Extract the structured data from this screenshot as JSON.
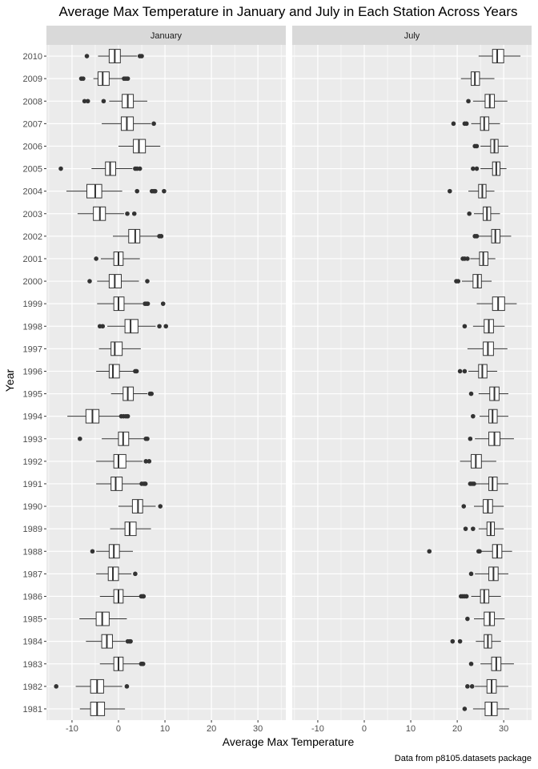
{
  "chart_data": {
    "type": "boxplot",
    "title": "Average Max Temperature in January and July in Each Station Across Years",
    "xlabel": "Average Max Temperature",
    "ylabel": "Year",
    "caption": "Data from p8105.datasets package",
    "xlim": [
      -15.5,
      36
    ],
    "x_ticks": [
      -10,
      0,
      10,
      20,
      30
    ],
    "y_categories": [
      "1981",
      "1982",
      "1983",
      "1984",
      "1985",
      "1986",
      "1987",
      "1988",
      "1989",
      "1990",
      "1991",
      "1992",
      "1993",
      "1994",
      "1995",
      "1996",
      "1997",
      "1998",
      "1999",
      "2000",
      "2001",
      "2002",
      "2003",
      "2004",
      "2005",
      "2006",
      "2007",
      "2008",
      "2009",
      "2010"
    ],
    "panels": [
      {
        "name": "January",
        "boxes": [
          {
            "year": "1981",
            "lw": -8.3,
            "q1": -6.0,
            "med": -4.6,
            "q3": -3.0,
            "uw": 1.4,
            "out": []
          },
          {
            "year": "1982",
            "lw": -9.2,
            "q1": -6.0,
            "med": -4.6,
            "q3": -3.2,
            "uw": 0.8,
            "out": [
              -13.4,
              1.8
            ]
          },
          {
            "year": "1983",
            "lw": -4.0,
            "q1": -1.0,
            "med": 0.0,
            "q3": 1.0,
            "uw": 4.6,
            "out": [
              4.9,
              5.1,
              5.3
            ]
          },
          {
            "year": "1984",
            "lw": -7.0,
            "q1": -3.6,
            "med": -2.5,
            "q3": -1.3,
            "uw": 1.5,
            "out": [
              2.0,
              2.4,
              2.6
            ]
          },
          {
            "year": "1985",
            "lw": -8.4,
            "q1": -4.8,
            "med": -3.5,
            "q3": -2.0,
            "uw": 1.8,
            "out": []
          },
          {
            "year": "1986",
            "lw": -4.0,
            "q1": -1.0,
            "med": 0.0,
            "q3": 1.0,
            "uw": 4.6,
            "out": [
              4.9,
              5.2,
              5.4
            ]
          },
          {
            "year": "1987",
            "lw": -4.8,
            "q1": -2.2,
            "med": -1.2,
            "q3": 0.0,
            "uw": 2.8,
            "out": [
              3.6
            ]
          },
          {
            "year": "1988",
            "lw": -4.8,
            "q1": -2.0,
            "med": -1.0,
            "q3": 0.2,
            "uw": 3.1,
            "out": [
              -5.6
            ]
          },
          {
            "year": "1989",
            "lw": -1.8,
            "q1": 1.4,
            "med": 2.4,
            "q3": 3.8,
            "uw": 7.0,
            "out": []
          },
          {
            "year": "1990",
            "lw": 0.0,
            "q1": 3.0,
            "med": 4.2,
            "q3": 5.2,
            "uw": 8.0,
            "out": [
              9.0
            ]
          },
          {
            "year": "1991",
            "lw": -4.8,
            "q1": -1.6,
            "med": -0.6,
            "q3": 0.8,
            "uw": 4.6,
            "out": [
              5.0,
              5.5,
              5.8
            ]
          },
          {
            "year": "1992",
            "lw": -4.8,
            "q1": -1.0,
            "med": 0.0,
            "q3": 1.6,
            "uw": 5.2,
            "out": [
              5.9,
              6.6
            ]
          },
          {
            "year": "1993",
            "lw": -3.6,
            "q1": 0.0,
            "med": 1.0,
            "q3": 2.2,
            "uw": 5.6,
            "out": [
              -8.3,
              5.9,
              6.2
            ]
          },
          {
            "year": "1994",
            "lw": -11.0,
            "q1": -7.0,
            "med": -5.6,
            "q3": -4.2,
            "uw": 0.2,
            "out": [
              0.6,
              1.1,
              1.6,
              2.0
            ]
          },
          {
            "year": "1995",
            "lw": -1.6,
            "q1": 1.0,
            "med": 2.0,
            "q3": 3.2,
            "uw": 6.2,
            "out": [
              6.8,
              7.1
            ]
          },
          {
            "year": "1996",
            "lw": -4.8,
            "q1": -2.0,
            "med": -1.2,
            "q3": 0.2,
            "uw": 3.2,
            "out": [
              3.6,
              3.9
            ]
          },
          {
            "year": "1997",
            "lw": -4.2,
            "q1": -1.6,
            "med": -0.8,
            "q3": 0.8,
            "uw": 4.8,
            "out": []
          },
          {
            "year": "1998",
            "lw": -2.4,
            "q1": 1.4,
            "med": 2.6,
            "q3": 4.2,
            "uw": 8.0,
            "out": [
              -4.0,
              -3.4,
              8.8,
              10.2
            ]
          },
          {
            "year": "1999",
            "lw": -4.6,
            "q1": -1.0,
            "med": 0.0,
            "q3": 1.2,
            "uw": 5.2,
            "out": [
              5.7,
              6.0,
              6.3,
              9.6
            ]
          },
          {
            "year": "2000",
            "lw": -4.6,
            "q1": -2.0,
            "med": -0.8,
            "q3": 0.6,
            "uw": 4.4,
            "out": [
              -6.2,
              6.2
            ]
          },
          {
            "year": "2001",
            "lw": -3.8,
            "q1": -1.0,
            "med": 0.0,
            "q3": 1.0,
            "uw": 4.6,
            "out": [
              -4.8
            ]
          },
          {
            "year": "2002",
            "lw": -1.2,
            "q1": 2.2,
            "med": 3.6,
            "q3": 4.6,
            "uw": 8.4,
            "out": [
              8.8,
              9.2
            ]
          },
          {
            "year": "2003",
            "lw": -8.8,
            "q1": -5.4,
            "med": -4.0,
            "q3": -2.8,
            "uw": 1.2,
            "out": [
              1.9,
              3.4
            ]
          },
          {
            "year": "2004",
            "lw": -11.2,
            "q1": -6.8,
            "med": -5.0,
            "q3": -3.6,
            "uw": 0.8,
            "out": [
              4.0,
              7.2,
              7.6,
              7.9,
              9.8
            ]
          },
          {
            "year": "2005",
            "lw": -5.8,
            "q1": -2.8,
            "med": -1.8,
            "q3": -0.6,
            "uw": 3.0,
            "out": [
              -12.4,
              3.6,
              4.0,
              4.6
            ]
          },
          {
            "year": "2006",
            "lw": 0.0,
            "q1": 3.2,
            "med": 4.4,
            "q3": 5.8,
            "uw": 9.0,
            "out": []
          },
          {
            "year": "2007",
            "lw": -3.6,
            "q1": 0.6,
            "med": 1.8,
            "q3": 3.2,
            "uw": 7.0,
            "out": [
              7.6
            ]
          },
          {
            "year": "2008",
            "lw": -2.0,
            "q1": 0.8,
            "med": 2.0,
            "q3": 3.2,
            "uw": 6.2,
            "out": [
              -7.3,
              -6.6,
              -3.2
            ]
          },
          {
            "year": "2009",
            "lw": -5.4,
            "q1": -4.4,
            "med": -3.4,
            "q3": -2.0,
            "uw": 0.8,
            "out": [
              -8.0,
              -7.6,
              1.2,
              1.6,
              2.0
            ]
          },
          {
            "year": "2010",
            "lw": -4.4,
            "q1": -2.0,
            "med": -0.8,
            "q3": 0.4,
            "uw": 4.0,
            "out": [
              -6.8,
              4.6,
              5.0
            ]
          }
        ]
      },
      {
        "name": "July",
        "boxes": [
          {
            "year": "1981",
            "lw": 23.4,
            "q1": 26.0,
            "med": 27.4,
            "q3": 28.6,
            "uw": 31.2,
            "out": [
              21.6
            ]
          },
          {
            "year": "1982",
            "lw": 23.8,
            "q1": 26.4,
            "med": 27.4,
            "q3": 28.4,
            "uw": 31.0,
            "out": [
              22.2,
              23.2
            ]
          },
          {
            "year": "1983",
            "lw": 25.0,
            "q1": 27.4,
            "med": 28.4,
            "q3": 29.4,
            "uw": 32.2,
            "out": [
              23.0
            ]
          },
          {
            "year": "1984",
            "lw": 24.0,
            "q1": 25.8,
            "med": 26.6,
            "q3": 27.4,
            "uw": 29.4,
            "out": [
              19.0,
              20.6
            ]
          },
          {
            "year": "1985",
            "lw": 23.6,
            "q1": 25.8,
            "med": 27.0,
            "q3": 28.0,
            "uw": 30.2,
            "out": [
              22.2
            ]
          },
          {
            "year": "1986",
            "lw": 23.0,
            "q1": 25.0,
            "med": 25.8,
            "q3": 26.8,
            "uw": 29.4,
            "out": [
              20.8,
              21.2,
              21.6,
              22.0
            ]
          },
          {
            "year": "1987",
            "lw": 23.8,
            "q1": 26.8,
            "med": 27.8,
            "q3": 28.8,
            "uw": 31.0,
            "out": [
              23.0
            ]
          },
          {
            "year": "1988",
            "lw": 25.2,
            "q1": 27.6,
            "med": 28.6,
            "q3": 29.6,
            "uw": 31.8,
            "out": [
              14.0,
              24.6,
              24.8
            ]
          },
          {
            "year": "1989",
            "lw": 24.6,
            "q1": 26.4,
            "med": 27.2,
            "q3": 28.0,
            "uw": 30.0,
            "out": [
              21.8,
              23.4
            ]
          },
          {
            "year": "1990",
            "lw": 23.6,
            "q1": 25.6,
            "med": 26.6,
            "q3": 27.6,
            "uw": 30.0,
            "out": [
              21.4
            ]
          },
          {
            "year": "1991",
            "lw": 24.0,
            "q1": 26.8,
            "med": 27.6,
            "q3": 28.6,
            "uw": 31.0,
            "out": [
              22.8,
              23.2,
              23.6
            ]
          },
          {
            "year": "1992",
            "lw": 20.6,
            "q1": 23.0,
            "med": 24.0,
            "q3": 25.2,
            "uw": 28.4,
            "out": []
          },
          {
            "year": "1993",
            "lw": 23.8,
            "q1": 26.8,
            "med": 28.0,
            "q3": 29.2,
            "uw": 32.2,
            "out": [
              22.8
            ]
          },
          {
            "year": "1994",
            "lw": 24.8,
            "q1": 26.8,
            "med": 27.6,
            "q3": 28.6,
            "uw": 31.0,
            "out": [
              23.4
            ]
          },
          {
            "year": "1995",
            "lw": 24.6,
            "q1": 27.0,
            "med": 28.0,
            "q3": 29.0,
            "uw": 31.0,
            "out": [
              23.0
            ]
          },
          {
            "year": "1996",
            "lw": 22.4,
            "q1": 24.6,
            "med": 25.4,
            "q3": 26.4,
            "uw": 28.6,
            "out": [
              20.6,
              21.6
            ]
          },
          {
            "year": "1997",
            "lw": 22.2,
            "q1": 25.6,
            "med": 26.6,
            "q3": 27.8,
            "uw": 30.8,
            "out": []
          },
          {
            "year": "1998",
            "lw": 23.4,
            "q1": 25.8,
            "med": 26.8,
            "q3": 27.8,
            "uw": 30.2,
            "out": [
              21.6
            ]
          },
          {
            "year": "1999",
            "lw": 24.2,
            "q1": 27.6,
            "med": 28.8,
            "q3": 30.2,
            "uw": 32.8,
            "out": []
          },
          {
            "year": "2000",
            "lw": 21.0,
            "q1": 23.4,
            "med": 24.4,
            "q3": 25.2,
            "uw": 27.4,
            "out": [
              19.8,
              20.2
            ]
          },
          {
            "year": "2001",
            "lw": 22.8,
            "q1": 24.8,
            "med": 25.6,
            "q3": 26.6,
            "uw": 28.2,
            "out": [
              21.2,
              21.6,
              22.2
            ]
          },
          {
            "year": "2002",
            "lw": 24.6,
            "q1": 27.4,
            "med": 28.2,
            "q3": 29.2,
            "uw": 31.6,
            "out": [
              23.8,
              24.2
            ]
          },
          {
            "year": "2003",
            "lw": 23.6,
            "q1": 25.6,
            "med": 26.4,
            "q3": 27.2,
            "uw": 29.2,
            "out": [
              22.6
            ]
          },
          {
            "year": "2004",
            "lw": 22.4,
            "q1": 24.6,
            "med": 25.4,
            "q3": 26.2,
            "uw": 28.0,
            "out": [
              18.4
            ]
          },
          {
            "year": "2005",
            "lw": 25.0,
            "q1": 27.6,
            "med": 28.4,
            "q3": 29.2,
            "uw": 30.6,
            "out": [
              23.4,
              24.2
            ]
          },
          {
            "year": "2006",
            "lw": 25.0,
            "q1": 27.2,
            "med": 28.0,
            "q3": 28.8,
            "uw": 31.0,
            "out": [
              23.8,
              24.2
            ]
          },
          {
            "year": "2007",
            "lw": 23.0,
            "q1": 25.0,
            "med": 25.8,
            "q3": 26.8,
            "uw": 29.2,
            "out": [
              19.2,
              21.6,
              22.0
            ]
          },
          {
            "year": "2008",
            "lw": 23.4,
            "q1": 26.0,
            "med": 27.0,
            "q3": 28.0,
            "uw": 30.8,
            "out": [
              22.4
            ]
          },
          {
            "year": "2009",
            "lw": 20.8,
            "q1": 23.0,
            "med": 23.8,
            "q3": 24.8,
            "uw": 28.0,
            "out": []
          },
          {
            "year": "2010",
            "lw": 24.6,
            "q1": 27.6,
            "med": 28.6,
            "q3": 30.0,
            "uw": 33.6,
            "out": []
          }
        ]
      }
    ]
  }
}
